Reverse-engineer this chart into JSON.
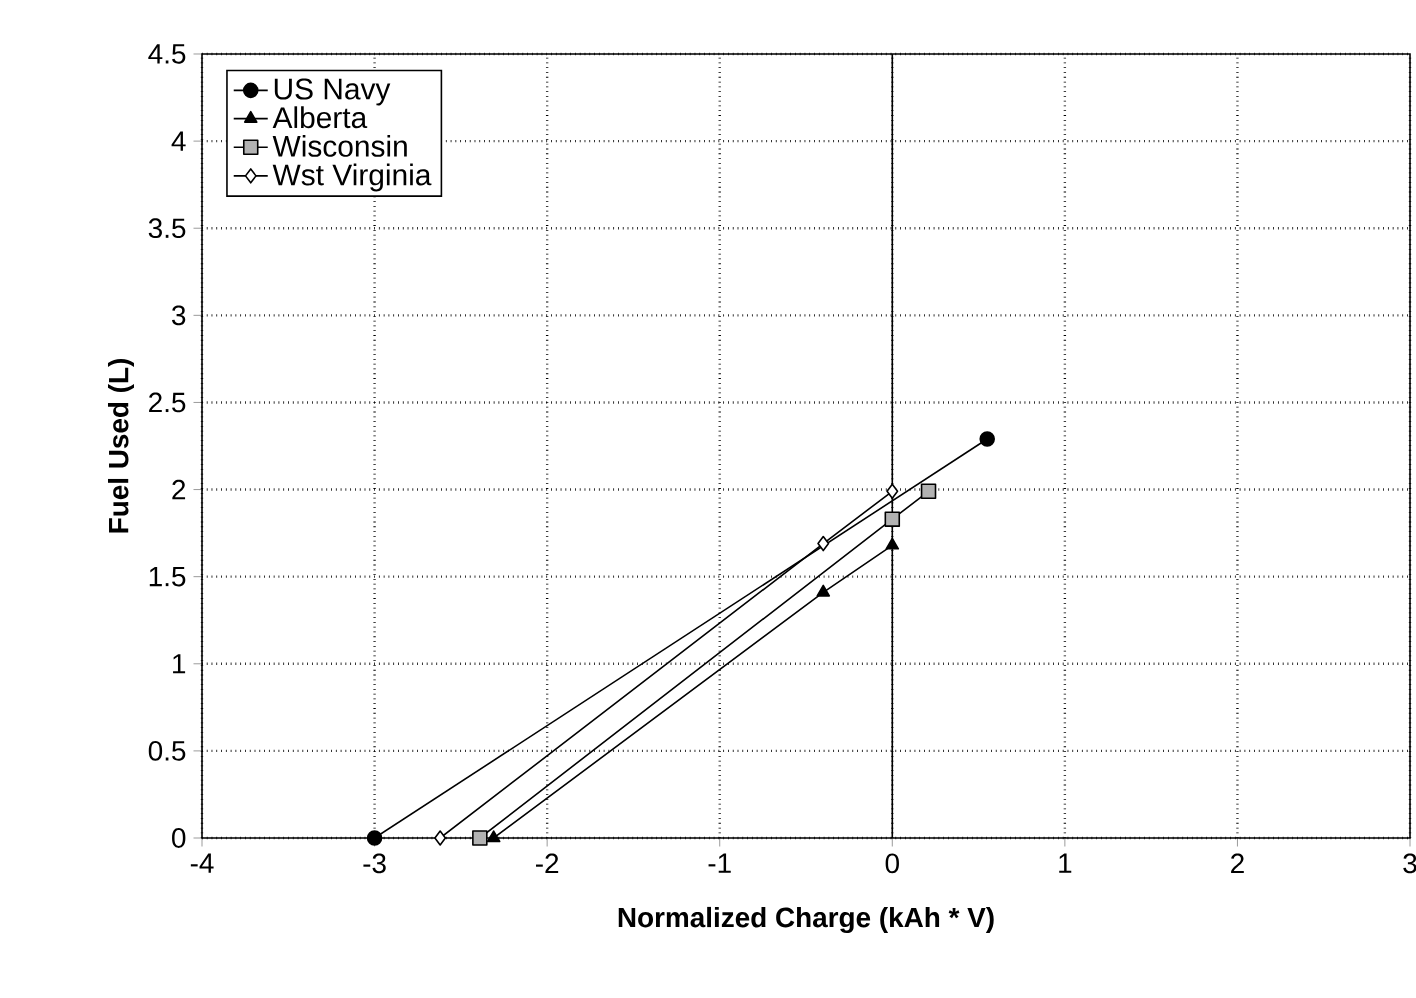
{
  "chart_data": {
    "type": "line",
    "xlabel": "Normalized Charge (kAh * V)",
    "ylabel": "Fuel Used (L)",
    "xlim": [
      -4,
      3
    ],
    "xticks": [
      -4,
      -3,
      -2,
      -1,
      0,
      1,
      2,
      3
    ],
    "ylim": [
      0,
      4.5
    ],
    "yticks": [
      0,
      0.5,
      1,
      1.5,
      2,
      2.5,
      3,
      3.5,
      4,
      4.5
    ],
    "grid": true,
    "legend": "top left",
    "line_style": "solid",
    "ref_lines": [
      {
        "axis": "x",
        "value": 0,
        "color": "#000000",
        "line_style": "solid"
      }
    ],
    "series": [
      {
        "name": "US Navy",
        "color": "#000000",
        "marker": "circle",
        "x": [
          -3,
          0.55
        ],
        "values": [
          0,
          2.29
        ]
      },
      {
        "name": "Alberta",
        "color": "#000000",
        "marker": "triangle",
        "x": [
          -2.31,
          -0.4,
          0
        ],
        "values": [
          0,
          1.41,
          1.68
        ]
      },
      {
        "name": "Wisconsin",
        "color": "#000000",
        "marker": "square",
        "x": [
          -2.39,
          0,
          0.21
        ],
        "values": [
          0,
          1.83,
          1.99
        ]
      },
      {
        "name": "Wst Virginia",
        "color": "#000000",
        "marker": "diamond",
        "x": [
          -2.62,
          -0.4,
          0
        ],
        "values": [
          0,
          1.69,
          1.99
        ]
      }
    ]
  }
}
